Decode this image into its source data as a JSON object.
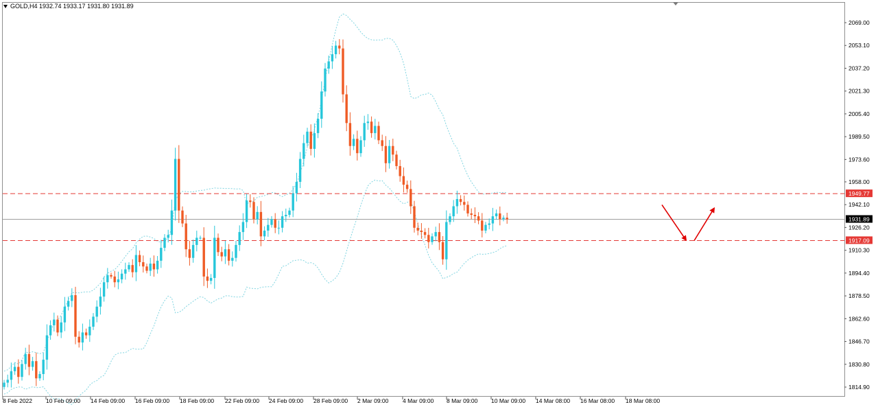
{
  "header": {
    "symbol": "GOLD,H4",
    "ohlc": "1932.74 1933.17 1931.80 1931.89",
    "menu_icon": "triangle-down-icon"
  },
  "colors": {
    "bull": "#26c6da",
    "bear": "#ef5b25",
    "level": "#e53935",
    "band": "#7fd4e0",
    "price_line": "#9e9e9e",
    "arrow": "#e00000"
  },
  "chart_data": {
    "type": "candlestick",
    "symbol": "GOLD",
    "timeframe": "H4",
    "y_ticks": [
      "2069.00",
      "2053.10",
      "2037.20",
      "2021.30",
      "2005.40",
      "1989.50",
      "1973.60",
      "1958.00",
      "1942.10",
      "1926.20",
      "1910.30",
      "1894.40",
      "1878.50",
      "1862.60",
      "1846.70",
      "1830.80",
      "1814.90"
    ],
    "ylim": [
      1810.5,
      2074.5
    ],
    "x_ticks": [
      "8 Feb 2022",
      "10 Feb 09:00",
      "14 Feb 09:00",
      "16 Feb 09:00",
      "18 Feb 09:00",
      "22 Feb 09:00",
      "24 Feb 09:00",
      "28 Feb 09:00",
      "2 Mar 09:00",
      "4 Mar 09:00",
      "8 Mar 09:00",
      "10 Mar 09:00",
      "14 Mar 08:00",
      "16 Mar 08:00",
      "18 Mar 08:00"
    ],
    "last_price": "1931.89",
    "levels": [
      {
        "label": "1949.77",
        "value": 1949.77,
        "style": "dashed"
      },
      {
        "label": "1917.09",
        "value": 1917.09,
        "style": "dashed"
      }
    ],
    "close_path": [
      1818,
      1820,
      1826,
      1829,
      1822,
      1831,
      1838,
      1829,
      1833,
      1821,
      1824,
      1834,
      1851,
      1858,
      1862,
      1853,
      1860,
      1871,
      1875,
      1879,
      1850,
      1846,
      1853,
      1851,
      1857,
      1864,
      1871,
      1878,
      1888,
      1893,
      1892,
      1888,
      1890,
      1894,
      1897,
      1900,
      1895,
      1907,
      1902,
      1899,
      1896,
      1901,
      1897,
      1903,
      1912,
      1919,
      1921,
      1938,
      1974,
      1938,
      1929,
      1911,
      1905,
      1914,
      1919,
      1919,
      1892,
      1889,
      1891,
      1919,
      1909,
      1906,
      1911,
      1903,
      1905,
      1914,
      1923,
      1930,
      1945,
      1944,
      1932,
      1937,
      1920,
      1924,
      1928,
      1932,
      1926,
      1926,
      1934,
      1935,
      1938,
      1950,
      1958,
      1974,
      1985,
      1993,
      1981,
      1992,
      2002,
      2021,
      2037,
      2042,
      2047,
      2053,
      2051,
      2019,
      1999,
      1983,
      1988,
      1978,
      1987,
      1999,
      2000,
      1992,
      1997,
      1987,
      1983,
      1971,
      1983,
      1977,
      1969,
      1962,
      1956,
      1953,
      1941,
      1926,
      1924,
      1923,
      1921,
      1916,
      1920,
      1923,
      1916,
      1904,
      1930,
      1934,
      1941,
      1946,
      1944,
      1942,
      1936,
      1935,
      1934,
      1931,
      1924,
      1928,
      1929,
      1934,
      1936,
      1932,
      1933,
      1931.89
    ],
    "indicators": [
      "Bollinger Bands"
    ],
    "annotations": [
      {
        "type": "arrow",
        "direction": "down",
        "from": 1942,
        "to": 1917
      },
      {
        "type": "arrow",
        "direction": "up",
        "from": 1917,
        "to": 1940
      }
    ]
  }
}
